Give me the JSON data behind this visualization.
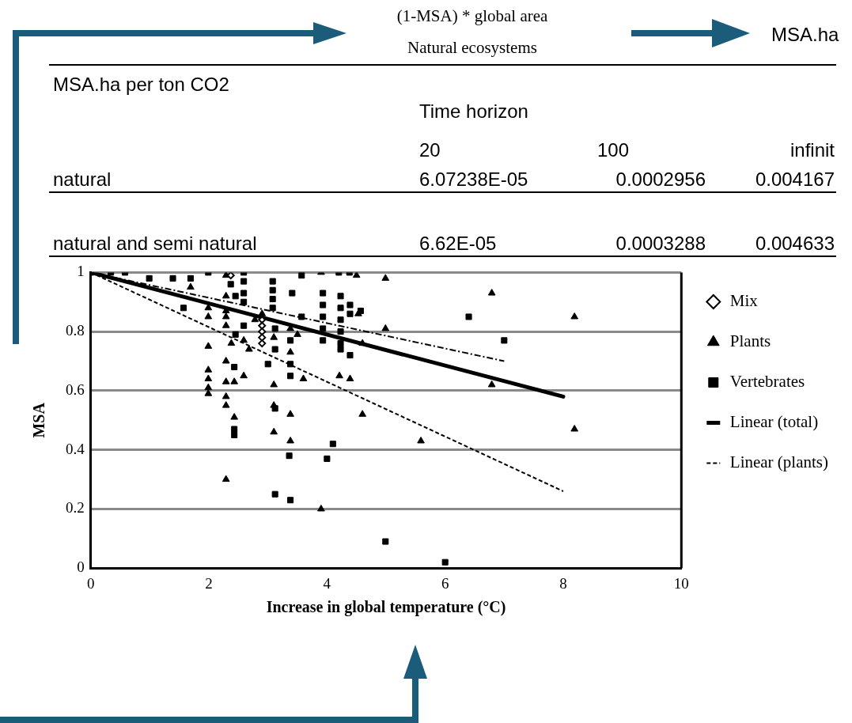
{
  "chart_data": {
    "type": "scatter",
    "xlabel": "Increase in global temperature (°C)",
    "ylabel": "MSA",
    "xlim": [
      0,
      10
    ],
    "xticks": [
      0,
      2,
      4,
      6,
      8,
      10
    ],
    "ylim": [
      0,
      1
    ],
    "yticks": [
      0,
      0.2,
      0.4,
      0.6,
      0.8,
      1
    ],
    "grid": "y",
    "legend": "right",
    "annotations": [
      "(1-MSA) * global area",
      "Natural ecosystems",
      "MSA.ha",
      "MSA.ha per ton CO2",
      "Time horizon",
      "20",
      "100",
      "infinit",
      "natural",
      "6.07238E-05",
      "0.0002956",
      "0.004167",
      "natural and semi natural",
      "6.62E-05",
      "0.0003288",
      "0.004633"
    ],
    "series": [
      {
        "name": "Mix",
        "type": "scatter",
        "marker": "diamond",
        "color": "#000000",
        "x": [
          2.37,
          2.9,
          2.9,
          2.9,
          2.9,
          2.9
        ],
        "values": [
          0.99,
          0.84,
          0.82,
          0.8,
          0.78,
          0.76
        ]
      },
      {
        "name": "Plants",
        "type": "scatter",
        "marker": "triangle",
        "color": "#000000",
        "x": [
          2.29,
          1.69,
          1.99,
          1.99,
          2.29,
          2.29,
          2.29,
          2.29,
          2.38,
          2.59,
          2.68,
          1.99,
          1.99,
          1.99,
          1.99,
          1.99,
          2.29,
          2.29,
          2.29,
          2.29,
          2.43,
          2.59,
          2.43,
          2.29,
          2.9,
          2.78,
          3.1,
          3.1,
          3.1,
          3.1,
          3.9,
          4.5,
          4.99,
          3.38,
          3.5,
          3.38,
          3.6,
          4.21,
          4.39,
          4.6,
          4.53,
          4.99,
          3.38,
          4.6,
          3.38,
          3.9,
          5.59,
          6.79,
          8.19,
          6.79,
          8.19
        ],
        "values": [
          0.99,
          0.95,
          0.88,
          0.85,
          0.92,
          0.87,
          0.85,
          0.82,
          0.76,
          0.77,
          0.74,
          0.75,
          0.67,
          0.64,
          0.61,
          0.59,
          0.7,
          0.63,
          0.58,
          0.55,
          0.63,
          0.65,
          0.51,
          0.3,
          0.86,
          0.84,
          0.78,
          0.62,
          0.55,
          0.46,
          1.0,
          0.99,
          0.98,
          0.81,
          0.79,
          0.73,
          0.64,
          0.65,
          0.64,
          0.76,
          0.86,
          0.81,
          0.52,
          0.52,
          0.43,
          0.2,
          0.43,
          0.93,
          0.85,
          0.62,
          0.47
        ]
      },
      {
        "name": "Vertebrates",
        "type": "scatter",
        "marker": "square",
        "color": "#000000",
        "x": [
          0,
          0.34,
          0.58,
          0.99,
          1.39,
          1.69,
          1.57,
          1.99,
          2.59,
          2.37,
          2.59,
          2.59,
          2.59,
          2.45,
          2.59,
          2.45,
          2.43,
          2.43,
          2.43,
          3.0,
          3.12,
          3.12,
          3.12,
          3.08,
          3.08,
          3.08,
          3.08,
          3.12,
          3.38,
          3.38,
          3.38,
          3.38,
          3.41,
          3.57,
          3.57,
          3.93,
          3.93,
          3.93,
          3.93,
          3.93,
          4.2,
          4.38,
          4.23,
          4.23,
          4.23,
          4.23,
          4.23,
          4.23,
          4.39,
          4.57,
          4.39,
          4.39,
          4.1,
          4.0,
          3.36,
          4.99,
          6.4,
          7.0,
          6.0
        ],
        "values": [
          1.0,
          1.0,
          1.0,
          0.98,
          0.98,
          0.98,
          0.88,
          1.0,
          1.0,
          0.96,
          0.97,
          0.93,
          0.9,
          0.92,
          0.82,
          0.79,
          0.68,
          0.47,
          0.45,
          0.69,
          0.74,
          0.54,
          0.25,
          0.97,
          0.94,
          0.91,
          0.88,
          0.81,
          0.23,
          0.77,
          0.65,
          0.69,
          0.93,
          0.99,
          0.85,
          0.93,
          0.89,
          0.85,
          0.81,
          0.77,
          1.0,
          1.0,
          0.92,
          0.88,
          0.84,
          0.8,
          0.76,
          0.74,
          0.89,
          0.87,
          0.86,
          0.72,
          0.42,
          0.37,
          0.38,
          0.09,
          0.85,
          0.77,
          0.02
        ]
      },
      {
        "name": "Linear (total)",
        "type": "line",
        "marker": "none",
        "line_style": "solid",
        "color": "#000000",
        "x": [
          0,
          8
        ],
        "values": [
          1.0,
          0.58
        ]
      },
      {
        "name": "Linear (plants)",
        "type": "line",
        "marker": "none",
        "line_style": "dashed",
        "color": "#000000",
        "x": [
          0,
          8
        ],
        "values": [
          1.0,
          0.26
        ]
      },
      {
        "type": "line",
        "marker": "none",
        "line_style": "dotted",
        "color": "#000000",
        "x": [
          0,
          7
        ],
        "values": [
          1.0,
          0.7
        ]
      }
    ]
  }
}
